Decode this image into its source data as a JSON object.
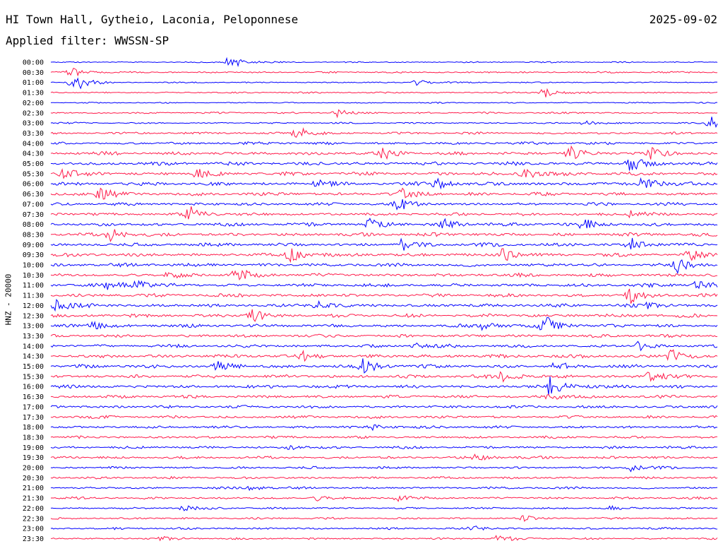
{
  "header": {
    "station": "HI Town Hall, Gytheio, Laconia, Peloponnese",
    "date": "2025-09-02",
    "filter": "Applied filter: WWSSN-SP"
  },
  "chart_data": {
    "type": "line",
    "ylabel": "HNZ - 20000",
    "colors": {
      "even": "#0000ff",
      "odd": "#ff1a4a"
    },
    "rows": [
      {
        "time": "00:00",
        "noise": 0.35,
        "events": [
          [
            0.27,
            1.6
          ]
        ]
      },
      {
        "time": "00:30",
        "noise": 0.45,
        "events": [
          [
            0.03,
            1.0
          ]
        ]
      },
      {
        "time": "01:00",
        "noise": 0.35,
        "events": [
          [
            0.035,
            2.4
          ],
          [
            0.55,
            0.6
          ]
        ]
      },
      {
        "time": "01:30",
        "noise": 0.4,
        "events": [
          [
            0.74,
            1.2
          ]
        ]
      },
      {
        "time": "02:00",
        "noise": 0.3,
        "events": []
      },
      {
        "time": "02:30",
        "noise": 0.45,
        "events": [
          [
            0.43,
            0.8
          ]
        ]
      },
      {
        "time": "03:00",
        "noise": 0.4,
        "events": [
          [
            0.8,
            0.5
          ],
          [
            0.99,
            1.4
          ]
        ]
      },
      {
        "time": "03:30",
        "noise": 0.6,
        "events": [
          [
            0.37,
            1.4
          ]
        ]
      },
      {
        "time": "04:00",
        "noise": 0.7,
        "events": []
      },
      {
        "time": "04:30",
        "noise": 0.9,
        "events": [
          [
            0.5,
            1.2
          ],
          [
            0.78,
            1.4
          ],
          [
            0.9,
            0.9
          ]
        ]
      },
      {
        "time": "05:00",
        "noise": 0.9,
        "events": [
          [
            0.87,
            2.2
          ]
        ]
      },
      {
        "time": "05:30",
        "noise": 0.9,
        "events": [
          [
            0.02,
            1.1
          ],
          [
            0.22,
            0.9
          ],
          [
            0.71,
            1.4
          ]
        ]
      },
      {
        "time": "06:00",
        "noise": 0.9,
        "events": [
          [
            0.4,
            0.8
          ],
          [
            0.58,
            1.0
          ],
          [
            0.89,
            1.6
          ]
        ]
      },
      {
        "time": "06:30",
        "noise": 0.9,
        "events": [
          [
            0.075,
            1.5
          ],
          [
            0.53,
            1.4
          ]
        ]
      },
      {
        "time": "07:00",
        "noise": 0.8,
        "events": [
          [
            0.52,
            1.4
          ]
        ]
      },
      {
        "time": "07:30",
        "noise": 0.8,
        "events": [
          [
            0.21,
            1.4
          ],
          [
            0.87,
            0.7
          ]
        ]
      },
      {
        "time": "08:00",
        "noise": 0.9,
        "events": [
          [
            0.48,
            1.4
          ],
          [
            0.59,
            1.0
          ],
          [
            0.8,
            0.9
          ]
        ]
      },
      {
        "time": "08:30",
        "noise": 0.9,
        "events": [
          [
            0.09,
            1.3
          ]
        ]
      },
      {
        "time": "09:00",
        "noise": 0.9,
        "events": [
          [
            0.53,
            1.6
          ],
          [
            0.87,
            1.4
          ]
        ]
      },
      {
        "time": "09:30",
        "noise": 0.9,
        "events": [
          [
            0.36,
            1.5
          ],
          [
            0.68,
            1.5
          ],
          [
            0.96,
            1.2
          ]
        ]
      },
      {
        "time": "10:00",
        "noise": 0.9,
        "events": [
          [
            0.94,
            1.5
          ]
        ]
      },
      {
        "time": "10:30",
        "noise": 0.9,
        "events": [
          [
            0.18,
            0.9
          ],
          [
            0.28,
            1.6
          ]
        ]
      },
      {
        "time": "11:00",
        "noise": 0.9,
        "events": [
          [
            0.09,
            1.0
          ],
          [
            0.13,
            0.8
          ],
          [
            0.97,
            1.2
          ]
        ]
      },
      {
        "time": "11:30",
        "noise": 0.9,
        "events": [
          [
            0.87,
            1.5
          ]
        ]
      },
      {
        "time": "12:00",
        "noise": 0.9,
        "events": [
          [
            0.01,
            1.3
          ],
          [
            0.4,
            0.8
          ],
          [
            0.9,
            0.8
          ]
        ]
      },
      {
        "time": "12:30",
        "noise": 0.9,
        "events": [
          [
            0.3,
            1.4
          ]
        ]
      },
      {
        "time": "13:00",
        "noise": 0.9,
        "events": [
          [
            0.06,
            0.9
          ],
          [
            0.65,
            0.9
          ],
          [
            0.74,
            2.1
          ]
        ]
      },
      {
        "time": "13:30",
        "noise": 0.8,
        "events": []
      },
      {
        "time": "14:00",
        "noise": 0.8,
        "events": [
          [
            0.55,
            0.7
          ],
          [
            0.88,
            0.9
          ]
        ]
      },
      {
        "time": "14:30",
        "noise": 0.9,
        "events": [
          [
            0.38,
            1.0
          ],
          [
            0.93,
            1.4
          ]
        ]
      },
      {
        "time": "15:00",
        "noise": 0.9,
        "events": [
          [
            0.25,
            1.4
          ],
          [
            0.47,
            1.5
          ],
          [
            0.76,
            1.0
          ]
        ]
      },
      {
        "time": "15:30",
        "noise": 0.9,
        "events": [
          [
            0.68,
            1.3
          ],
          [
            0.9,
            1.4
          ]
        ]
      },
      {
        "time": "16:00",
        "noise": 0.9,
        "events": [
          [
            0.75,
            2.2
          ]
        ]
      },
      {
        "time": "16:30",
        "noise": 0.8,
        "events": [
          [
            0.75,
            0.8
          ]
        ]
      },
      {
        "time": "17:00",
        "noise": 0.75,
        "events": []
      },
      {
        "time": "17:30",
        "noise": 0.75,
        "events": []
      },
      {
        "time": "18:00",
        "noise": 0.7,
        "events": [
          [
            0.48,
            0.6
          ]
        ]
      },
      {
        "time": "18:30",
        "noise": 0.7,
        "events": []
      },
      {
        "time": "19:00",
        "noise": 0.65,
        "events": [
          [
            0.36,
            0.5
          ]
        ]
      },
      {
        "time": "19:30",
        "noise": 0.7,
        "events": [
          [
            0.64,
            0.6
          ]
        ]
      },
      {
        "time": "20:00",
        "noise": 0.6,
        "events": [
          [
            0.87,
            0.7
          ]
        ]
      },
      {
        "time": "20:30",
        "noise": 0.6,
        "events": []
      },
      {
        "time": "21:00",
        "noise": 0.6,
        "events": [
          [
            0.3,
            0.5
          ]
        ]
      },
      {
        "time": "21:30",
        "noise": 0.6,
        "events": [
          [
            0.4,
            0.5
          ],
          [
            0.52,
            0.6
          ]
        ]
      },
      {
        "time": "22:00",
        "noise": 0.5,
        "events": [
          [
            0.2,
            0.5
          ],
          [
            0.84,
            0.6
          ]
        ]
      },
      {
        "time": "22:30",
        "noise": 0.5,
        "events": [
          [
            0.71,
            0.5
          ]
        ]
      },
      {
        "time": "23:00",
        "noise": 0.55,
        "events": [
          [
            0.63,
            0.6
          ]
        ]
      },
      {
        "time": "23:30",
        "noise": 0.5,
        "events": [
          [
            0.17,
            0.5
          ],
          [
            0.67,
            0.7
          ]
        ]
      }
    ]
  }
}
